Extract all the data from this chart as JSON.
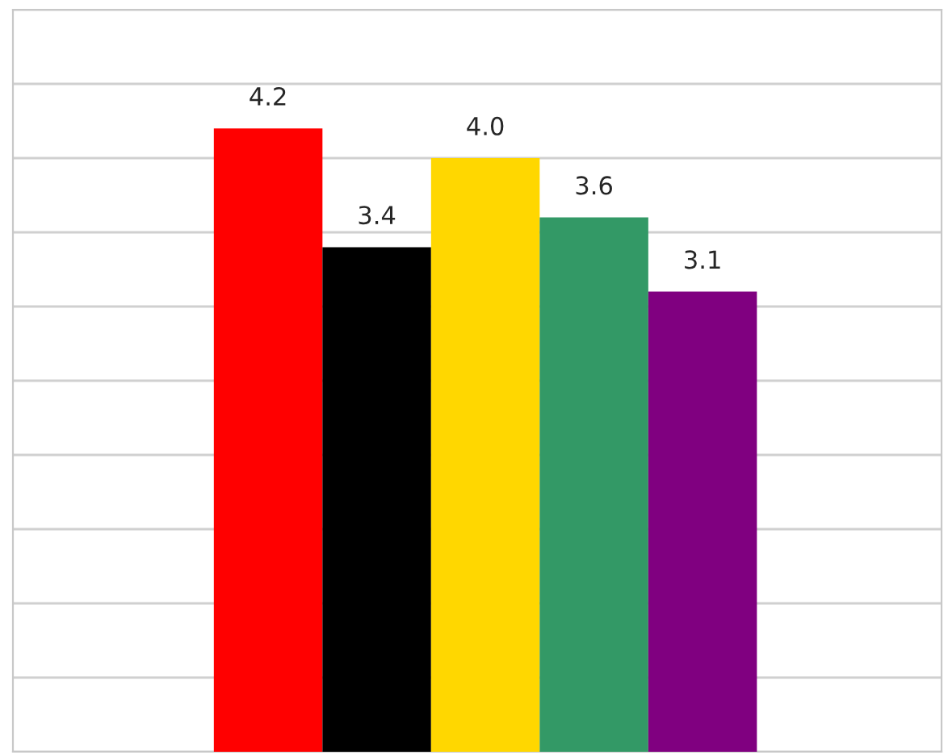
{
  "chart_data": {
    "type": "bar",
    "categories": [
      null,
      null,
      null,
      null,
      null
    ],
    "values": [
      4.2,
      3.4,
      4.0,
      3.6,
      3.1
    ],
    "colors": [
      "#ff0000",
      "#000000",
      "#ffd700",
      "#339966",
      "#800080"
    ],
    "ylim": [
      0,
      5
    ],
    "yticks": [
      {
        "value": 0,
        "label": null
      },
      {
        "value": 0.5,
        "label": null
      },
      {
        "value": 1,
        "label": null
      },
      {
        "value": 1.5,
        "label": null
      },
      {
        "value": 2,
        "label": null
      },
      {
        "value": 2.5,
        "label": null
      },
      {
        "value": 3,
        "label": null
      },
      {
        "value": 3.5,
        "label": null
      },
      {
        "value": 4,
        "label": null
      },
      {
        "value": 4.5,
        "label": null
      },
      {
        "value": 5,
        "label": null
      }
    ],
    "value_labels": [
      "4.2",
      "3.4",
      "4.0",
      "3.6",
      "3.1"
    ],
    "grid": "y"
  }
}
